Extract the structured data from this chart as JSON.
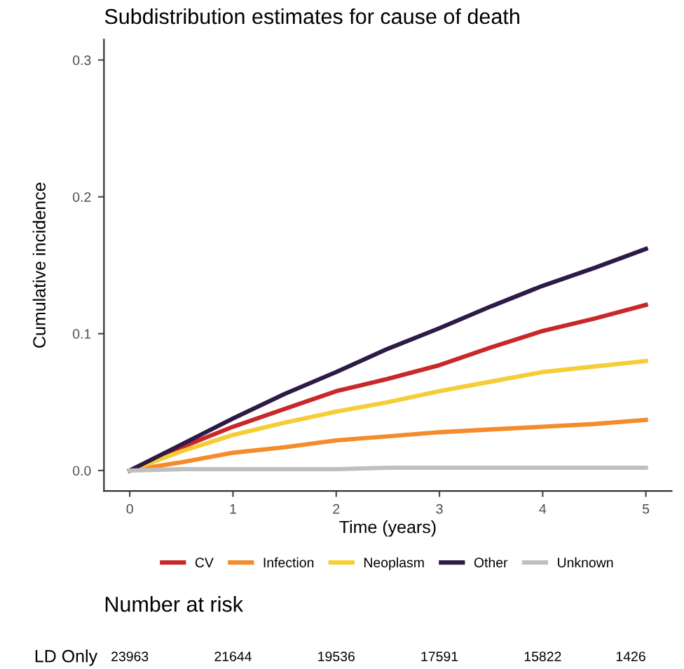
{
  "chart_data": {
    "type": "line",
    "title": "Subdistribution estimates for cause of death",
    "xlabel": "Time (years)",
    "ylabel": "Cumulative incidence",
    "x": [
      0,
      0.5,
      1,
      1.5,
      2,
      2.5,
      3,
      3.5,
      4,
      4.5,
      5
    ],
    "series": [
      {
        "name": "CV",
        "color": "#c8282a",
        "values": [
          0,
          0.017,
          0.032,
          0.045,
          0.058,
          0.067,
          0.077,
          0.09,
          0.102,
          0.111,
          0.121
        ]
      },
      {
        "name": "Infection",
        "color": "#f58b2a",
        "values": [
          0,
          0.006,
          0.013,
          0.017,
          0.022,
          0.025,
          0.028,
          0.03,
          0.032,
          0.034,
          0.037
        ]
      },
      {
        "name": "Neoplasm",
        "color": "#f5cd35",
        "values": [
          0,
          0.014,
          0.026,
          0.035,
          0.043,
          0.05,
          0.058,
          0.065,
          0.072,
          0.076,
          0.08
        ]
      },
      {
        "name": "Other",
        "color": "#2e1a47",
        "values": [
          0,
          0.019,
          0.038,
          0.056,
          0.072,
          0.089,
          0.104,
          0.12,
          0.135,
          0.148,
          0.162
        ]
      },
      {
        "name": "Unknown",
        "color": "#bfbfbf",
        "values": [
          0,
          0.001,
          0.001,
          0.001,
          0.001,
          0.002,
          0.002,
          0.002,
          0.002,
          0.002,
          0.002
        ]
      }
    ],
    "xlim": [
      -0.25,
      5.25
    ],
    "xticks": [
      0,
      1,
      2,
      3,
      4,
      5
    ],
    "ylim": [
      -0.015,
      0.315
    ],
    "yticks": [
      {
        "value": 0,
        "label": "0.0"
      },
      {
        "value": 0.1,
        "label": "0.1"
      },
      {
        "value": 0.2,
        "label": "0.2"
      },
      {
        "value": 0.3,
        "label": "0.3"
      }
    ],
    "grid": false,
    "legend": "bottom",
    "marker": "none",
    "line_style": "solid",
    "annotations": [
      "Number at risk",
      "LD Only",
      "23963",
      "21644",
      "19536",
      "17591",
      "15822",
      "1426"
    ]
  }
}
